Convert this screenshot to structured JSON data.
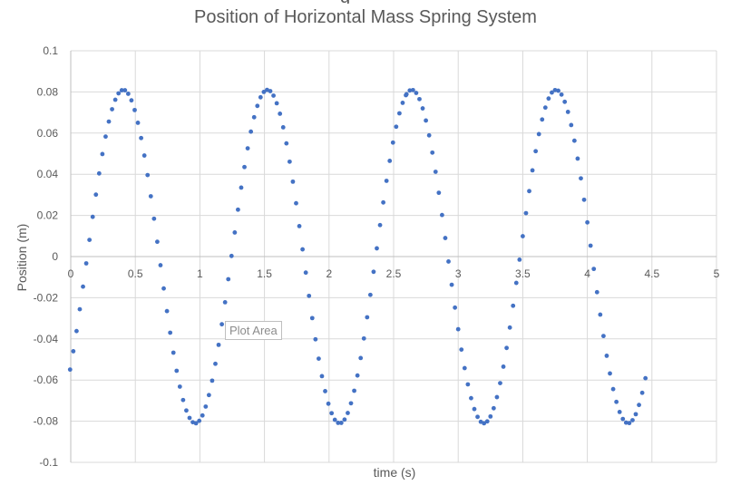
{
  "chart_data": {
    "type": "scatter",
    "title": "Position of Horizontal Mass Spring System",
    "xlabel": "time (s)",
    "ylabel": "Position (m)",
    "xlim": [
      0,
      5
    ],
    "ylim": [
      -0.1,
      0.1
    ],
    "x_ticks": [
      "0",
      "0.5",
      "1",
      "1.5",
      "2",
      "2.5",
      "3",
      "3.5",
      "4",
      "4.5",
      "5"
    ],
    "y_ticks": [
      "0.1",
      "0.08",
      "0.06",
      "0.04",
      "0.02",
      "0",
      "-0.02",
      "-0.04",
      "-0.06",
      "-0.08",
      "-0.1"
    ],
    "grid": true,
    "legend": "none",
    "marker_color": "#4472c4",
    "series": [
      {
        "amplitude": 0.081,
        "period": 1.117,
        "phase_t0": -0.152,
        "x_start": -0.005,
        "x_end": 2.6,
        "x_step": 0.025
      },
      {
        "amplitude": 0.081,
        "period": 1.117,
        "phase_t0": -0.152,
        "x_start": 2.6,
        "x_end": 4.46,
        "x_step": 0.025
      }
    ],
    "points_x": [],
    "points_y": []
  },
  "overlay": {
    "tooltip": "Plot Area",
    "title_fragment": "g"
  }
}
